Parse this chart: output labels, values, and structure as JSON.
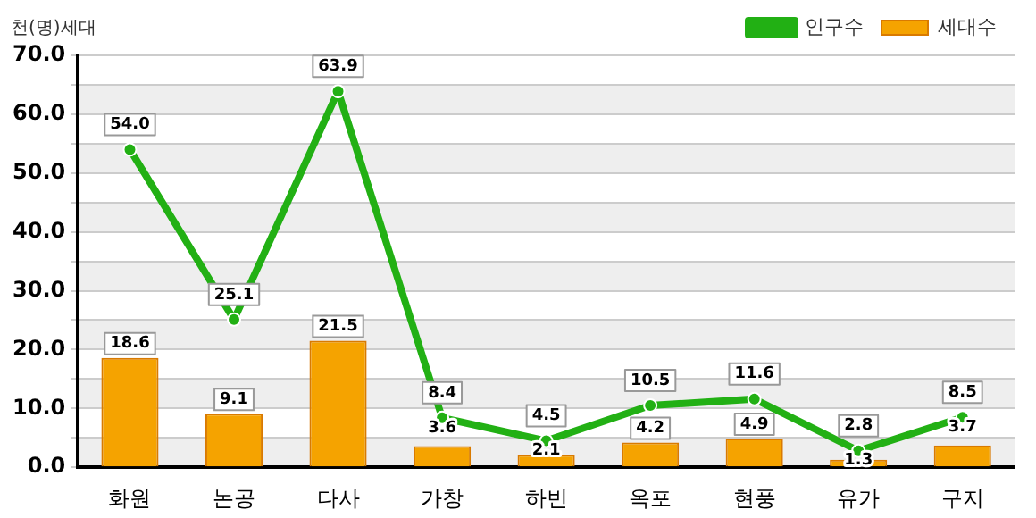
{
  "chart_data": {
    "type": "bar",
    "ylabel": "천(명)세대",
    "categories": [
      "화원",
      "논공",
      "다사",
      "가창",
      "하빈",
      "옥포",
      "현풍",
      "유가",
      "구지"
    ],
    "series": [
      {
        "name": "세대수",
        "color": "#f5a300",
        "values": [
          18.6,
          9.1,
          21.5,
          3.6,
          2.1,
          4.2,
          4.9,
          1.3,
          3.7
        ],
        "value_labels": [
          "18.6",
          "9.1",
          "21.5",
          "3.6",
          "2.1",
          "4.2",
          "4.9",
          "1.3",
          "3.7"
        ]
      },
      {
        "name": "인구수",
        "type": "line",
        "color": "#22b014",
        "values": [
          54.0,
          25.1,
          63.9,
          8.4,
          4.5,
          10.5,
          11.6,
          2.8,
          8.5
        ],
        "value_labels": [
          "54.0",
          "25.1",
          "63.9",
          "8.4",
          "4.5",
          "10.5",
          "11.6",
          "2.8",
          "8.5"
        ]
      }
    ],
    "ylim": [
      0,
      70
    ],
    "yticks": [
      {
        "value": 0,
        "label": "0.0"
      },
      {
        "value": 5,
        "label": null
      },
      {
        "value": 10,
        "label": "10.0"
      },
      {
        "value": 15,
        "label": null
      },
      {
        "value": 20,
        "label": "20.0"
      },
      {
        "value": 25,
        "label": null
      },
      {
        "value": 30,
        "label": "30.0"
      },
      {
        "value": 35,
        "label": null
      },
      {
        "value": 40,
        "label": "40.0"
      },
      {
        "value": 45,
        "label": null
      },
      {
        "value": 50,
        "label": "50.0"
      },
      {
        "value": 55,
        "label": null
      },
      {
        "value": 60,
        "label": "60.0"
      },
      {
        "value": 65,
        "label": null
      },
      {
        "value": 70,
        "label": "70.0"
      }
    ],
    "grid": "y",
    "legend": "top right",
    "marker": "circle",
    "line_style": "solid"
  }
}
